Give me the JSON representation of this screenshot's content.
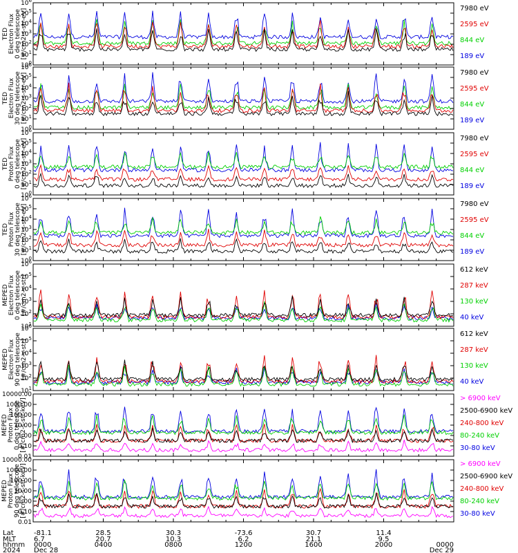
{
  "chart_data": {
    "type": "line",
    "panels": [
      {
        "id": "ted-e-0",
        "ylabel_lines": [
          "TED",
          "Electron Flux",
          "0 deg telescope",
          "[#/cm2-s-str-eV]"
        ],
        "yscale": "log",
        "ylim": [
          1,
          1000000
        ],
        "yticks": [
          "10^0",
          "10^1",
          "10^2",
          "10^3",
          "10^4",
          "10^5",
          "10^6"
        ],
        "series": [
          {
            "name": "7980 eV",
            "color": "#000000"
          },
          {
            "name": "2595 eV",
            "color": "#e00000"
          },
          {
            "name": "844 eV",
            "color": "#00d000"
          },
          {
            "name": "189 eV",
            "color": "#0000e0"
          }
        ]
      },
      {
        "id": "ted-e-30",
        "ylabel_lines": [
          "TED",
          "Electron Flux",
          "30 deg telescope",
          "[#/cm2-s-str-eV]"
        ],
        "yscale": "log",
        "ylim": [
          1,
          1000000
        ],
        "yticks": [
          "10^0",
          "10^1",
          "10^2",
          "10^3",
          "10^4",
          "10^5",
          "10^6"
        ],
        "series": [
          {
            "name": "7980 eV",
            "color": "#000000"
          },
          {
            "name": "2595 eV",
            "color": "#e00000"
          },
          {
            "name": "844 eV",
            "color": "#00d000"
          },
          {
            "name": "189 eV",
            "color": "#0000e0"
          }
        ]
      },
      {
        "id": "ted-p-0",
        "ylabel_lines": [
          "TED",
          "Proton Flux",
          "0 deg telescope",
          "[#/cm2-s-str-eV]"
        ],
        "yscale": "log",
        "ylim": [
          1,
          1000000
        ],
        "yticks": [
          "10^0",
          "10^1",
          "10^2",
          "10^3",
          "10^4",
          "10^5",
          "10^6"
        ],
        "series": [
          {
            "name": "7980 eV",
            "color": "#000000"
          },
          {
            "name": "2595 eV",
            "color": "#e00000"
          },
          {
            "name": "844 eV",
            "color": "#00d000"
          },
          {
            "name": "189 eV",
            "color": "#0000e0"
          }
        ]
      },
      {
        "id": "ted-p-30",
        "ylabel_lines": [
          "TED",
          "Proton Flux",
          "30 deg telescope",
          "[#/cm2-s-str-eV]"
        ],
        "yscale": "log",
        "ylim": [
          1,
          1000000
        ],
        "yticks": [
          "10^0",
          "10^1",
          "10^2",
          "10^3",
          "10^4",
          "10^5",
          "10^6"
        ],
        "series": [
          {
            "name": "7980 eV",
            "color": "#000000"
          },
          {
            "name": "2595 eV",
            "color": "#e00000"
          },
          {
            "name": "844 eV",
            "color": "#00d000"
          },
          {
            "name": "189 eV",
            "color": "#0000e0"
          }
        ]
      },
      {
        "id": "meped-e-0",
        "ylabel_lines": [
          "MEPED",
          "Electron Flux",
          "0 deg telescope",
          "[#/cm2-s-str]"
        ],
        "yscale": "log",
        "ylim": [
          10,
          1000000
        ],
        "yticks": [
          "10^1",
          "10^2",
          "10^3",
          "10^4",
          "10^5",
          "10^6"
        ],
        "series": [
          {
            "name": "612 keV",
            "color": "#000000"
          },
          {
            "name": "287 keV",
            "color": "#e00000"
          },
          {
            "name": "130 keV",
            "color": "#00d000"
          },
          {
            "name": "40 keV",
            "color": "#0000e0"
          }
        ]
      },
      {
        "id": "meped-e-90",
        "ylabel_lines": [
          "MEPED",
          "Electron Flux",
          "90 deg telescope",
          "[#/cm2-s-str]"
        ],
        "yscale": "log",
        "ylim": [
          10,
          1000000
        ],
        "yticks": [
          "10^1",
          "10^2",
          "10^3",
          "10^4",
          "10^5",
          "10^6"
        ],
        "series": [
          {
            "name": "612 keV",
            "color": "#000000"
          },
          {
            "name": "287 keV",
            "color": "#e00000"
          },
          {
            "name": "130 keV",
            "color": "#00d000"
          },
          {
            "name": "40 keV",
            "color": "#0000e0"
          }
        ]
      },
      {
        "id": "meped-p-0",
        "ylabel_lines": [
          "MEPED",
          "Proton Flux",
          "0 deg telescope",
          "[#/cm2-s-str-keV]"
        ],
        "yscale": "log",
        "ylim": [
          0.01,
          10000
        ],
        "yticks": [
          "0.01",
          "0.10",
          "1.00",
          "10.00",
          "100.00",
          "1000.00",
          "10000.00"
        ],
        "series": [
          {
            "name": "> 6900 keV",
            "color": "#ff00ff"
          },
          {
            "name": "2500-6900 keV",
            "color": "#000000"
          },
          {
            "name": "240-800 keV",
            "color": "#e00000"
          },
          {
            "name": "80-240 keV",
            "color": "#00d000"
          },
          {
            "name": "30-80 keV",
            "color": "#0000e0"
          }
        ]
      },
      {
        "id": "meped-p-90",
        "ylabel_lines": [
          "MEPED",
          "Proton Flux",
          "90 deg telescope",
          "[#/cm2-s-str-keV]"
        ],
        "yscale": "log",
        "ylim": [
          0.01,
          10000
        ],
        "yticks": [
          "0.01",
          "0.10",
          "1.00",
          "10.00",
          "100.00",
          "1000.00",
          "10000.00"
        ],
        "series": [
          {
            "name": "> 6900 keV",
            "color": "#ff00ff"
          },
          {
            "name": "2500-6900 keV",
            "color": "#000000"
          },
          {
            "name": "240-800 keV",
            "color": "#e00000"
          },
          {
            "name": "80-240 keV",
            "color": "#00d000"
          },
          {
            "name": "30-80 keV",
            "color": "#0000e0"
          }
        ]
      }
    ],
    "x_axis": {
      "row_labels": [
        "Lat",
        "MLT",
        "hhmm",
        "2024"
      ],
      "ticks": [
        {
          "lat": "-81.1",
          "mlt": "6.7",
          "hhmm": "0000",
          "date": "Dec 28"
        },
        {
          "lat": "28.5",
          "mlt": "20.7",
          "hhmm": "0400",
          "date": ""
        },
        {
          "lat": "30.3",
          "mlt": "10.3",
          "hhmm": "0800",
          "date": ""
        },
        {
          "lat": "-73.6",
          "mlt": "6.2",
          "hhmm": "1200",
          "date": ""
        },
        {
          "lat": "30.7",
          "mlt": "21.1",
          "hhmm": "1600",
          "date": ""
        },
        {
          "lat": "11.4",
          "mlt": "9.5",
          "hhmm": "2000",
          "date": ""
        },
        {
          "lat": "",
          "mlt": "",
          "hhmm": "0000",
          "date": "Dec 29"
        }
      ]
    }
  }
}
